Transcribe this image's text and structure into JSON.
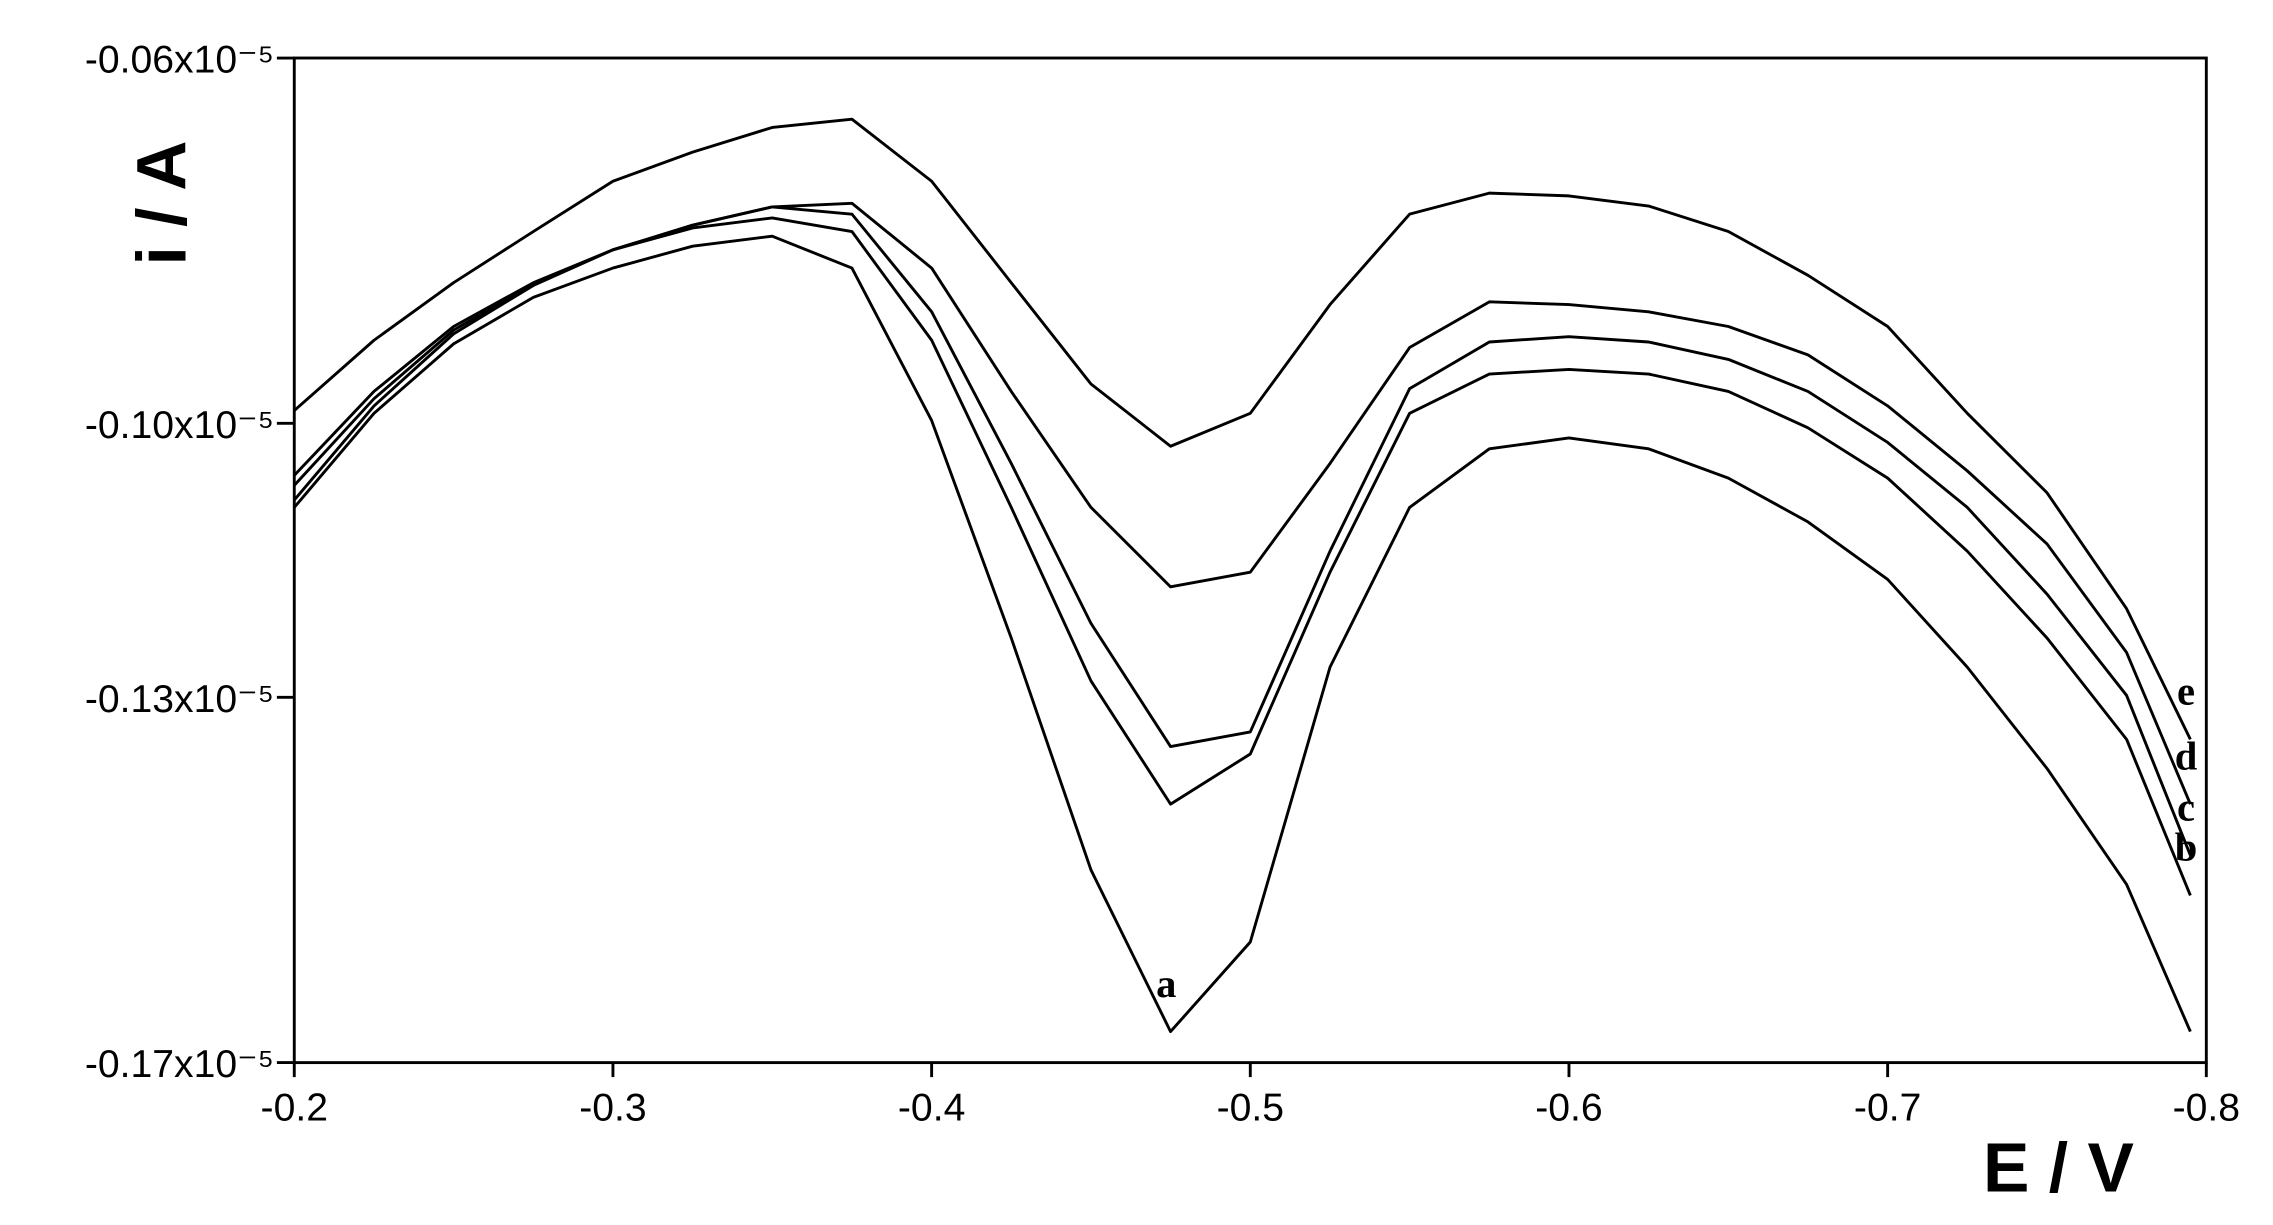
{
  "chart_data": {
    "type": "line",
    "x_label": "E / V",
    "y_label": "i / A",
    "x": [
      -0.2,
      -0.225,
      -0.25,
      -0.275,
      -0.3,
      -0.325,
      -0.35,
      -0.375,
      -0.4,
      -0.425,
      -0.45,
      -0.475,
      -0.5,
      -0.525,
      -0.55,
      -0.575,
      -0.6,
      -0.625,
      -0.65,
      -0.675,
      -0.7,
      -0.725,
      -0.75,
      -0.775,
      -0.795
    ],
    "xlim": [
      -0.2,
      -0.8
    ],
    "xticks": [
      -0.2,
      -0.3,
      -0.4,
      -0.5,
      -0.6,
      -0.7,
      -0.8
    ],
    "ylim": [
      -1.7e-06,
      -6e-07
    ],
    "yticks": [
      {
        "value": -6e-07,
        "label": "-0.06x10⁻⁵"
      },
      {
        "value": -1e-06,
        "label": "-0.10x10⁻⁵"
      },
      {
        "value": -1.3e-06,
        "label": "-0.13x10⁻⁵"
      },
      {
        "value": -1.7e-06,
        "label": "-0.17x10⁻⁵"
      }
    ],
    "series": [
      {
        "name": "a",
        "color": "#000000",
        "values": [
          -1.092e-06,
          -9.89e-07,
          -9.13e-07,
          -8.62e-07,
          -8.3e-07,
          -8.06e-07,
          -7.95e-07,
          -8.3e-07,
          -9.97e-07,
          -1.235e-06,
          -1.489e-06,
          -1.666e-06,
          -1.568e-06,
          -1.267e-06,
          -1.092e-06,
          -1.028e-06,
          -1.016e-06,
          -1.028e-06,
          -1.06e-06,
          -1.108e-06,
          -1.171e-06,
          -1.267e-06,
          -1.378e-06,
          -1.505e-06,
          -1.666e-06
        ]
      },
      {
        "name": "b",
        "color": "#000000",
        "values": [
          -1.084e-06,
          -9.81e-07,
          -9.02e-07,
          -8.49e-07,
          -8.1e-07,
          -7.86e-07,
          -7.75e-07,
          -7.9e-07,
          -9.09e-07,
          -1.092e-06,
          -1.282e-06,
          -1.417e-06,
          -1.362e-06,
          -1.163e-06,
          -9.89e-07,
          -9.46e-07,
          -9.41e-07,
          -9.46e-07,
          -9.65e-07,
          -1.005e-06,
          -1.06e-06,
          -1.14e-06,
          -1.235e-06,
          -1.346e-06,
          -1.517e-06
        ]
      },
      {
        "name": "c",
        "color": "#000000",
        "values": [
          -1.068e-06,
          -9.73e-07,
          -8.98e-07,
          -8.48e-07,
          -8.1e-07,
          -7.83e-07,
          -7.63e-07,
          -7.71e-07,
          -8.78e-07,
          -1.044e-06,
          -1.219e-06,
          -1.354e-06,
          -1.338e-06,
          -1.14e-06,
          -9.62e-07,
          -9.11e-07,
          -9.05e-07,
          -9.11e-07,
          -9.3e-07,
          -9.65e-07,
          -1.021e-06,
          -1.092e-06,
          -1.187e-06,
          -1.298e-06,
          -1.473e-06
        ]
      },
      {
        "name": "d",
        "color": "#000000",
        "values": [
          -1.057e-06,
          -9.65e-07,
          -8.94e-07,
          -8.46e-07,
          -8.1e-07,
          -7.83e-07,
          -7.63e-07,
          -7.59e-07,
          -8.3e-07,
          -9.65e-07,
          -1.092e-06,
          -1.179e-06,
          -1.163e-06,
          -1.044e-06,
          -9.17e-07,
          -8.67e-07,
          -8.7e-07,
          -8.78e-07,
          -8.94e-07,
          -9.25e-07,
          -9.81e-07,
          -1.052e-06,
          -1.132e-06,
          -1.251e-06,
          -1.417e-06
        ]
      },
      {
        "name": "e",
        "color": "#000000",
        "values": [
          -9.86e-07,
          -9.09e-07,
          -8.46e-07,
          -7.9e-07,
          -7.35e-07,
          -7.03e-07,
          -6.76e-07,
          -6.67e-07,
          -7.35e-07,
          -8.46e-07,
          -9.57e-07,
          -1.025e-06,
          -9.89e-07,
          -8.7e-07,
          -7.71e-07,
          -7.48e-07,
          -7.51e-07,
          -7.62e-07,
          -7.9e-07,
          -8.38e-07,
          -8.94e-07,
          -9.89e-07,
          -1.076e-06,
          -1.203e-06,
          -1.346e-06
        ]
      }
    ]
  }
}
